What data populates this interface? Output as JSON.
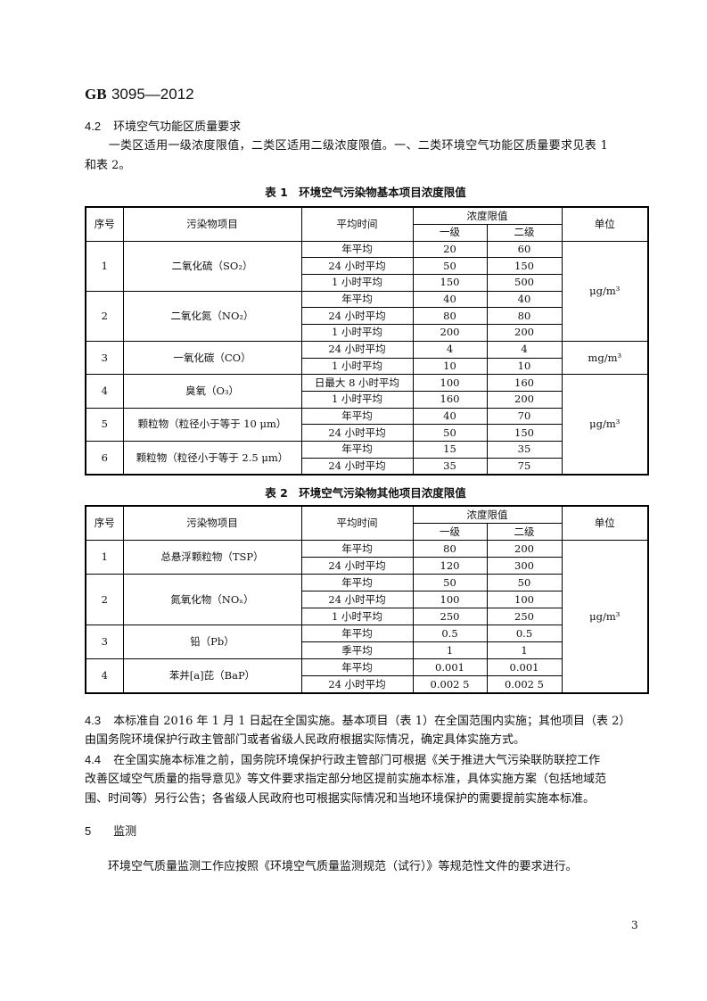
{
  "header": {
    "code": "GB",
    "number": "3095—2012"
  },
  "section_4_2": {
    "num": "4.2",
    "title": "环境空气功能区质量要求",
    "para_line1": "　　一类区适用一级浓度限值，二类区适用二级浓度限值。一、二类环境空气功能区质量要求见表 1",
    "para_line2": "和表 2。"
  },
  "table1": {
    "title": "表 1　环境空气污染物基本项目浓度限值",
    "headers": {
      "no": "序号",
      "item": "污染物项目",
      "period": "平均时间",
      "limit": "浓度限值",
      "grade1": "一级",
      "grade2": "二级",
      "unit": "单位"
    },
    "groups": [
      {
        "no": "1",
        "item": "二氧化硫（SO₂）",
        "rows": [
          [
            "年平均",
            "20",
            "60"
          ],
          [
            "24 小时平均",
            "50",
            "150"
          ],
          [
            "1 小时平均",
            "150",
            "500"
          ]
        ]
      },
      {
        "no": "2",
        "item": "二氧化氮（NO₂）",
        "rows": [
          [
            "年平均",
            "40",
            "40"
          ],
          [
            "24 小时平均",
            "80",
            "80"
          ],
          [
            "1 小时平均",
            "200",
            "200"
          ]
        ]
      },
      {
        "no": "3",
        "item": "一氧化碳（CO）",
        "rows": [
          [
            "24 小时平均",
            "4",
            "4"
          ],
          [
            "1 小时平均",
            "10",
            "10"
          ]
        ]
      },
      {
        "no": "4",
        "item": "臭氧（O₃）",
        "rows": [
          [
            "日最大 8 小时平均",
            "100",
            "160"
          ],
          [
            "1 小时平均",
            "160",
            "200"
          ]
        ]
      },
      {
        "no": "5",
        "item": "颗粒物（粒径小于等于 10 μm）",
        "rows": [
          [
            "年平均",
            "40",
            "70"
          ],
          [
            "24 小时平均",
            "50",
            "150"
          ]
        ]
      },
      {
        "no": "6",
        "item": "颗粒物（粒径小于等于 2.5 μm）",
        "rows": [
          [
            "年平均",
            "15",
            "35"
          ],
          [
            "24 小时平均",
            "35",
            "75"
          ]
        ]
      }
    ],
    "units": [
      "μg/m³",
      "mg/m³",
      "μg/m³"
    ]
  },
  "table2": {
    "title": "表 2　环境空气污染物其他项目浓度限值",
    "headers": {
      "no": "序号",
      "item": "污染物项目",
      "period": "平均时间",
      "limit": "浓度限值",
      "grade1": "一级",
      "grade2": "二级",
      "unit": "单位"
    },
    "groups": [
      {
        "no": "1",
        "item": "总悬浮颗粒物（TSP）",
        "rows": [
          [
            "年平均",
            "80",
            "200"
          ],
          [
            "24 小时平均",
            "120",
            "300"
          ]
        ]
      },
      {
        "no": "2",
        "item": "氮氧化物（NOₓ）",
        "rows": [
          [
            "年平均",
            "50",
            "50"
          ],
          [
            "24 小时平均",
            "100",
            "100"
          ],
          [
            "1 小时平均",
            "250",
            "250"
          ]
        ]
      },
      {
        "no": "3",
        "item": "铅（Pb）",
        "rows": [
          [
            "年平均",
            "0.5",
            "0.5"
          ],
          [
            "季平均",
            "1",
            "1"
          ]
        ]
      },
      {
        "no": "4",
        "item": "苯并[a]芘（BaP）",
        "rows": [
          [
            "年平均",
            "0.001",
            "0.001"
          ],
          [
            "24 小时平均",
            "0.002 5",
            "0.002 5"
          ]
        ]
      }
    ],
    "unit": "μg/m³"
  },
  "section_4_3": {
    "num": "4.3",
    "line1": "本标准自 2016 年 1 月 1 日起在全国实施。基本项目（表 1）在全国范围内实施；其他项目（表 2）",
    "line2": "由国务院环境保护行政主管部门或者省级人民政府根据实际情况，确定具体实施方式。"
  },
  "section_4_4": {
    "num": "4.4",
    "line1": "在全国实施本标准之前，国务院环境保护行政主管部门可根据《关于推进大气污染联防联控工作",
    "line2": "改善区域空气质量的指导意见》等文件要求指定部分地区提前实施本标准，具体实施方案（包括地域范",
    "line3": "围、时间等）另行公告；各省级人民政府也可根据实际情况和当地环境保护的需要提前实施本标准。"
  },
  "section_5": {
    "num": "5",
    "title": "监测",
    "para": "　　环境空气质量监测工作应按照《环境空气质量监测规范（试行）》等规范性文件的要求进行。"
  },
  "page_number": "3"
}
